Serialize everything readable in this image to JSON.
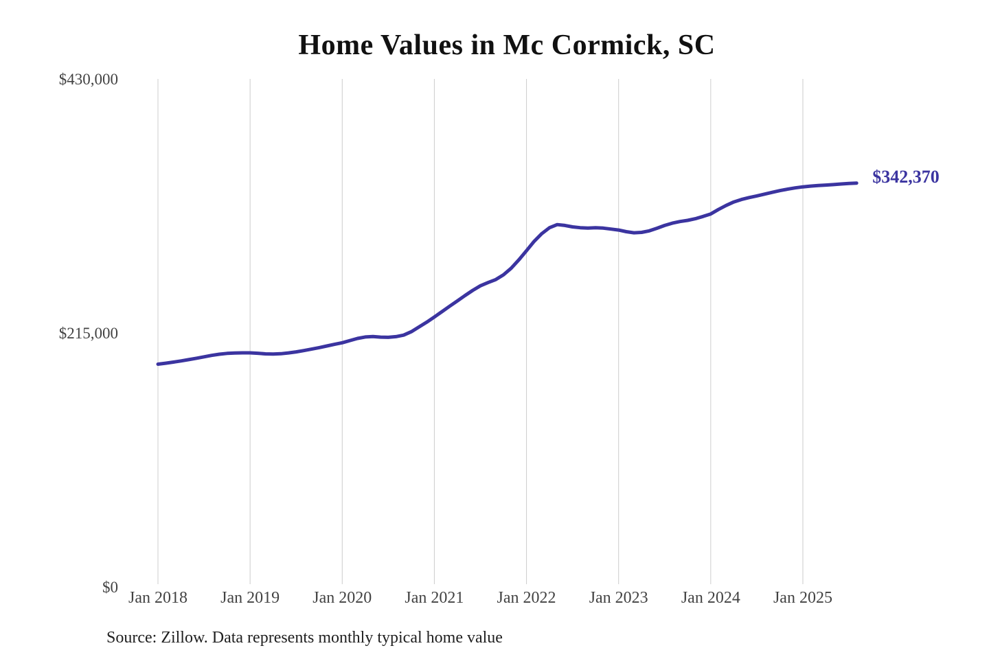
{
  "chart_data": {
    "type": "line",
    "title": "Home Values in Mc Cormick, SC",
    "source_note": "Source: Zillow. Data represents monthly typical home value",
    "end_label": "$342,370",
    "latest_value": 342370,
    "series_name": "Monthly typical home value",
    "x_tick_labels": [
      "Jan 2018",
      "Jan 2019",
      "Jan 2020",
      "Jan 2021",
      "Jan 2022",
      "Jan 2023",
      "Jan 2024",
      "Jan 2025"
    ],
    "y_tick_labels": [
      "$0",
      "$215,000",
      "$430,000"
    ],
    "y_tick_values": [
      0,
      215000,
      430000
    ],
    "ylim": [
      0,
      430000
    ],
    "grid": "vertical-only",
    "legend": "none",
    "line_color": "#3b34a0",
    "grid_color": "#cccccc",
    "months": [
      "2018-01",
      "2018-02",
      "2018-03",
      "2018-04",
      "2018-05",
      "2018-06",
      "2018-07",
      "2018-08",
      "2018-09",
      "2018-10",
      "2018-11",
      "2018-12",
      "2019-01",
      "2019-02",
      "2019-03",
      "2019-04",
      "2019-05",
      "2019-06",
      "2019-07",
      "2019-08",
      "2019-09",
      "2019-10",
      "2019-11",
      "2019-12",
      "2020-01",
      "2020-02",
      "2020-03",
      "2020-04",
      "2020-05",
      "2020-06",
      "2020-07",
      "2020-08",
      "2020-09",
      "2020-10",
      "2020-11",
      "2020-12",
      "2021-01",
      "2021-02",
      "2021-03",
      "2021-04",
      "2021-05",
      "2021-06",
      "2021-07",
      "2021-08",
      "2021-09",
      "2021-10",
      "2021-11",
      "2021-12",
      "2022-01",
      "2022-02",
      "2022-03",
      "2022-04",
      "2022-05",
      "2022-06",
      "2022-07",
      "2022-08",
      "2022-09",
      "2022-10",
      "2022-11",
      "2022-12",
      "2023-01",
      "2023-02",
      "2023-03",
      "2023-04",
      "2023-05",
      "2023-06",
      "2023-07",
      "2023-08",
      "2023-09",
      "2023-10",
      "2023-11",
      "2023-12",
      "2024-01",
      "2024-02",
      "2024-03",
      "2024-04",
      "2024-05",
      "2024-06",
      "2024-07",
      "2024-08",
      "2024-09",
      "2024-10",
      "2024-11",
      "2024-12",
      "2025-01",
      "2025-02",
      "2025-03",
      "2025-04",
      "2025-05",
      "2025-06",
      "2025-07",
      "2025-08"
    ],
    "values": [
      189000,
      189800,
      190700,
      191700,
      192800,
      194000,
      195200,
      196400,
      197400,
      198100,
      198400,
      198600,
      198600,
      198200,
      197700,
      197500,
      197800,
      198500,
      199400,
      200500,
      201700,
      203000,
      204400,
      205800,
      207100,
      209000,
      210800,
      212000,
      212400,
      211900,
      211700,
      212300,
      213600,
      216500,
      220500,
      224500,
      228900,
      233500,
      238100,
      242600,
      247100,
      251500,
      255400,
      258100,
      260600,
      264600,
      270200,
      277300,
      285100,
      293000,
      299600,
      304600,
      307200,
      306500,
      305300,
      304600,
      304300,
      304500,
      304200,
      303400,
      302600,
      301200,
      300300,
      300600,
      301900,
      304100,
      306500,
      308400,
      309800,
      310800,
      312200,
      314100,
      316200,
      320000,
      323400,
      326400,
      328500,
      330100,
      331500,
      333000,
      334500,
      336000,
      337200,
      338300,
      339200,
      339800,
      340300,
      340700,
      341100,
      341600,
      342000,
      342370
    ]
  }
}
